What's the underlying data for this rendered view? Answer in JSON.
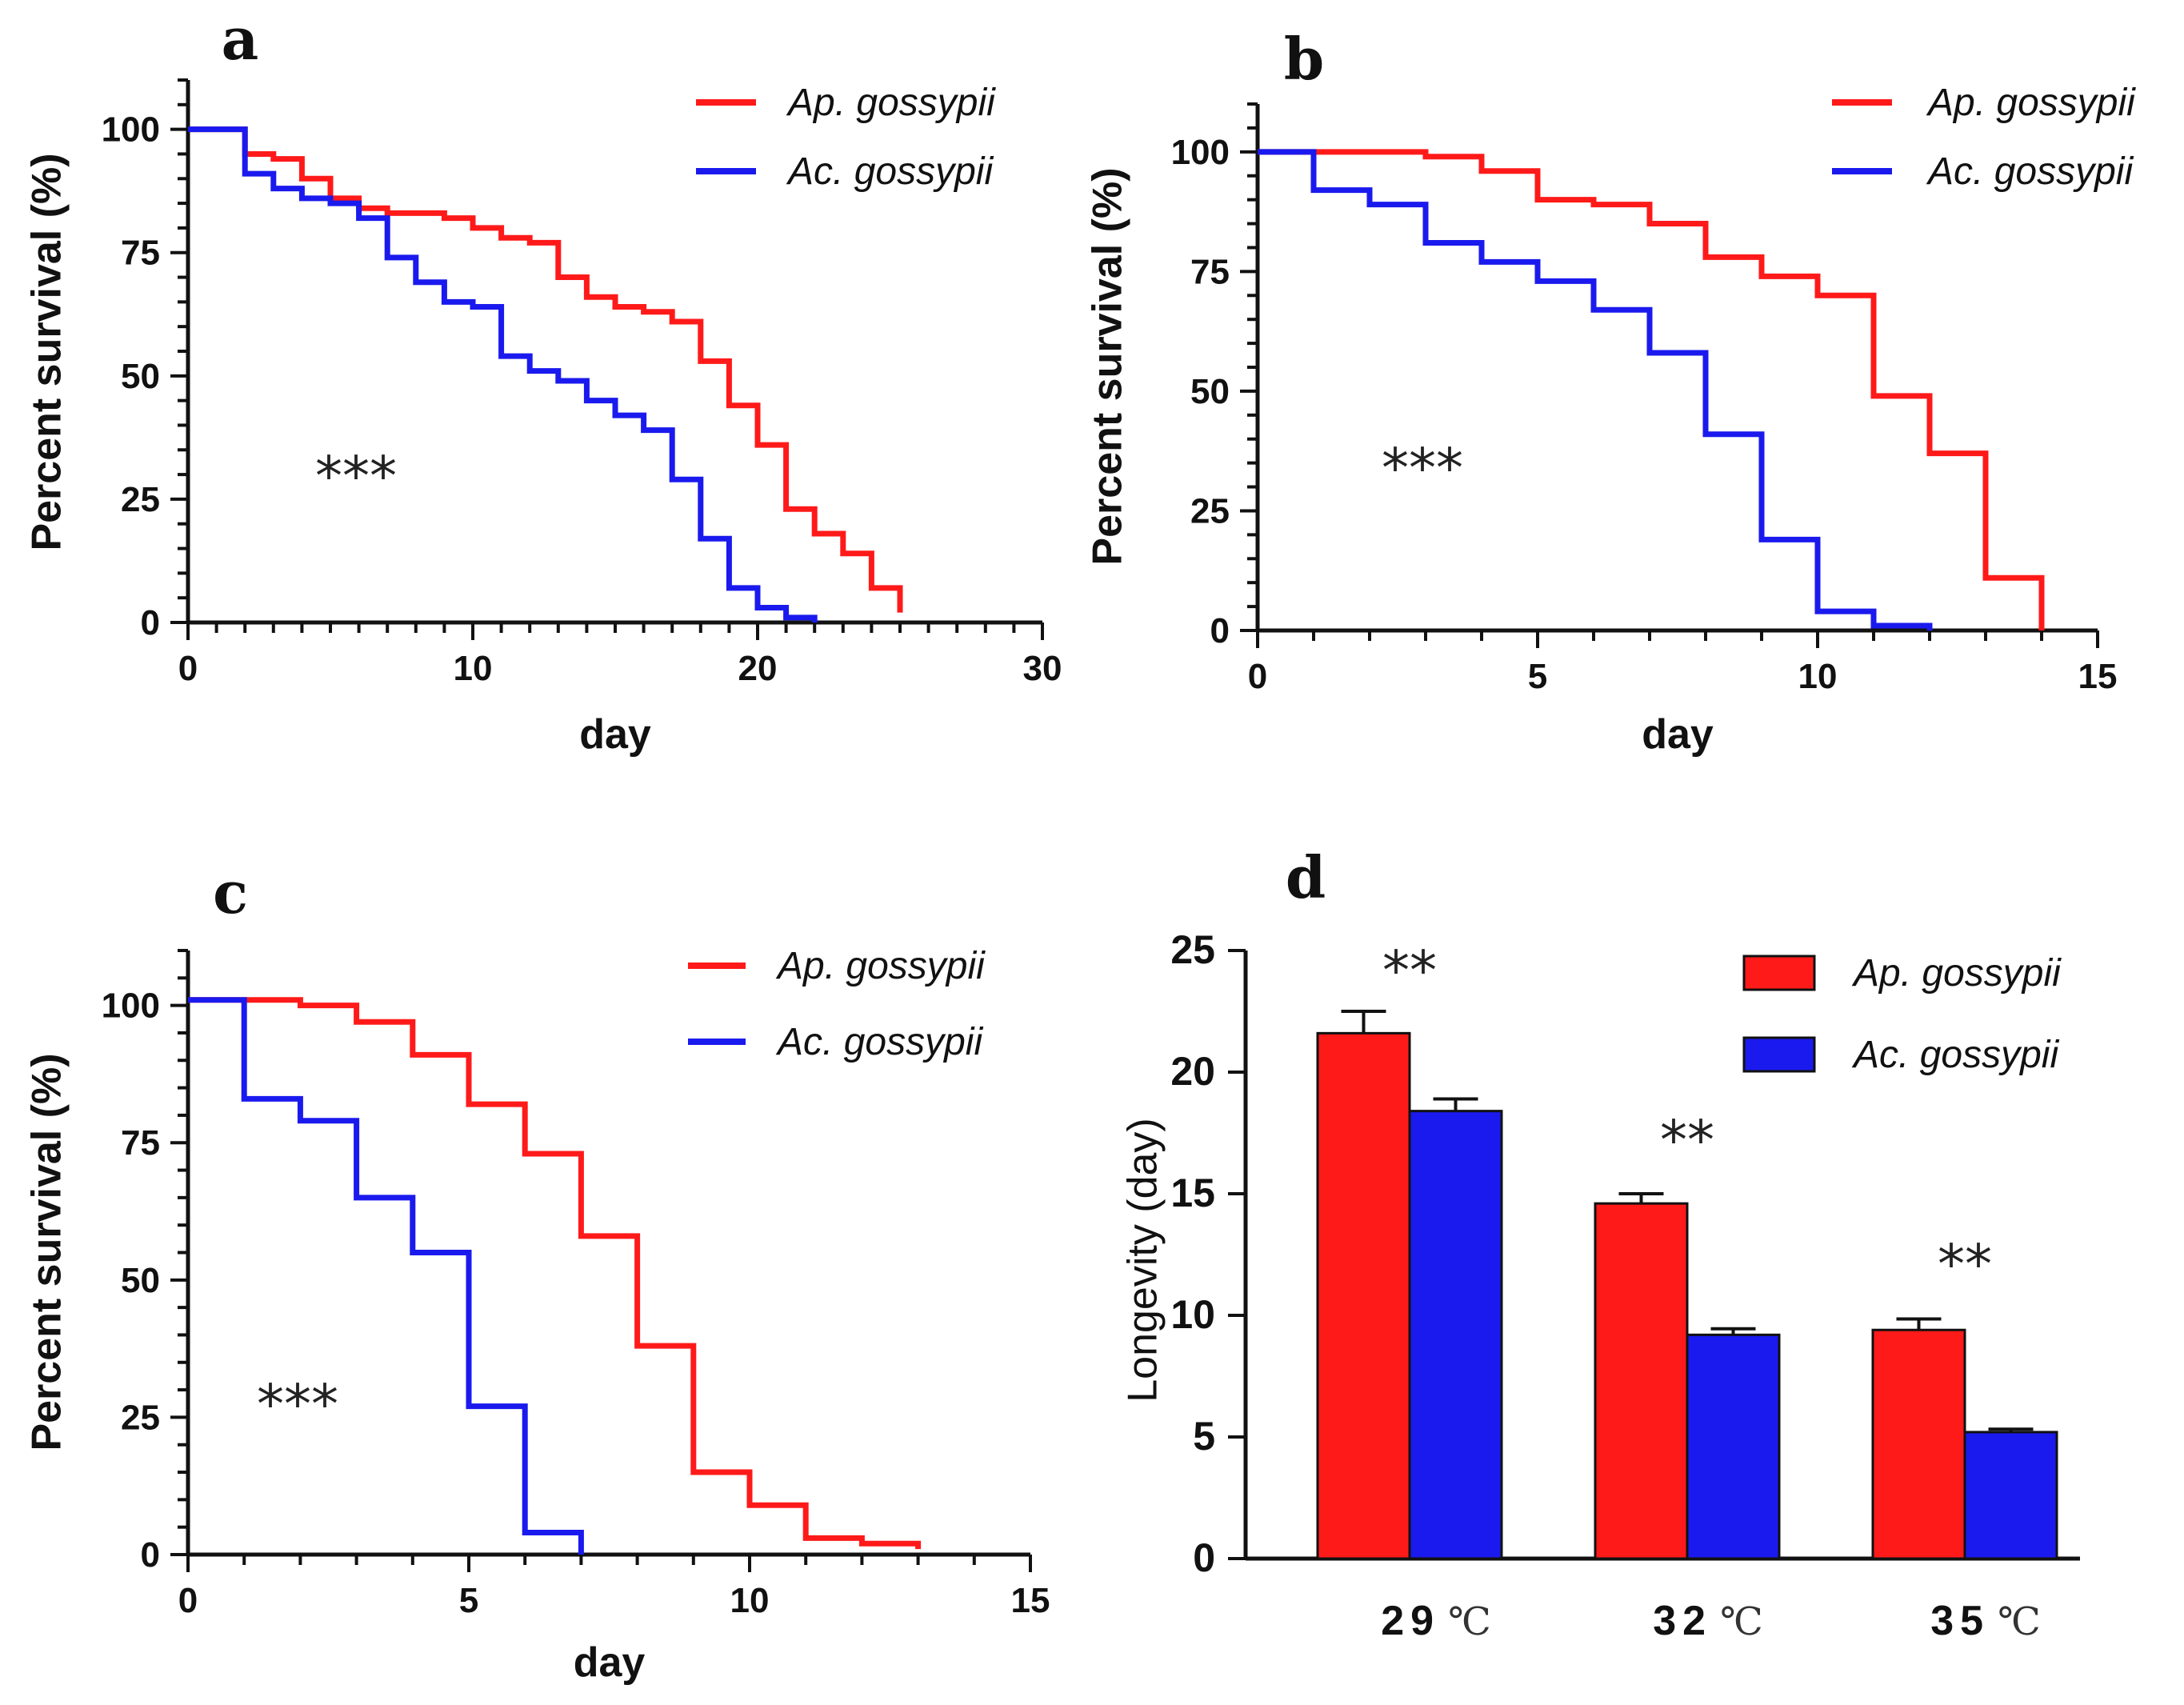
{
  "colors": {
    "red": "#ff1a1a",
    "blue": "#1a1aee",
    "axis": "#111111"
  },
  "chart_data": [
    {
      "panel": "a",
      "type": "line",
      "step": true,
      "xlabel": "day",
      "ylabel": "Percent survival (%)",
      "xlim": [
        0,
        30
      ],
      "ylim": [
        0,
        110
      ],
      "xticks": [
        0,
        10,
        20,
        30
      ],
      "yticks": [
        0,
        25,
        50,
        75,
        100
      ],
      "xminor": 1,
      "yminor": 5,
      "annotation": "***",
      "legend": [
        "Ap. gossypii",
        "Ac. gossypii"
      ],
      "series": [
        {
          "name": "Ap. gossypii",
          "color": "#ff1a1a",
          "x": [
            0,
            2,
            3,
            4,
            5,
            6,
            7,
            8,
            9,
            10,
            11,
            12,
            13,
            14,
            15,
            16,
            17,
            18,
            19,
            20,
            21,
            22,
            23,
            24,
            25
          ],
          "y": [
            100,
            95,
            94,
            90,
            86,
            84,
            83,
            83,
            82,
            80,
            78,
            77,
            70,
            66,
            64,
            63,
            61,
            53,
            44,
            36,
            23,
            18,
            14,
            7,
            2
          ]
        },
        {
          "name": "Ac. gossypii",
          "color": "#1a1aee",
          "x": [
            0,
            2,
            3,
            4,
            5,
            6,
            7,
            8,
            9,
            10,
            11,
            12,
            13,
            14,
            15,
            16,
            17,
            18,
            19,
            20,
            21,
            22
          ],
          "y": [
            100,
            91,
            88,
            86,
            85,
            82,
            74,
            69,
            65,
            64,
            54,
            51,
            49,
            45,
            42,
            39,
            29,
            17,
            7,
            3,
            1,
            0
          ]
        }
      ]
    },
    {
      "panel": "b",
      "type": "line",
      "step": true,
      "xlabel": "day",
      "ylabel": "Percent survival (%)",
      "xlim": [
        0,
        15
      ],
      "ylim": [
        0,
        110
      ],
      "xticks": [
        0,
        5,
        10,
        15
      ],
      "yticks": [
        0,
        25,
        50,
        75,
        100
      ],
      "xminor": 1,
      "yminor": 5,
      "annotation": "***",
      "legend": [
        "Ap. gossypii",
        "Ac. gossypii"
      ],
      "series": [
        {
          "name": "Ap. gossypii",
          "color": "#ff1a1a",
          "x": [
            0,
            3,
            4,
            5,
            6,
            7,
            8,
            9,
            10,
            11,
            12,
            13,
            14
          ],
          "y": [
            100,
            99,
            96,
            90,
            89,
            85,
            78,
            74,
            70,
            49,
            37,
            11,
            0
          ]
        },
        {
          "name": "Ac. gossypii",
          "color": "#1a1aee",
          "x": [
            0,
            1,
            2,
            3,
            4,
            5,
            6,
            7,
            8,
            9,
            10,
            11,
            12
          ],
          "y": [
            100,
            92,
            89,
            81,
            77,
            73,
            67,
            58,
            41,
            19,
            4,
            1,
            0
          ]
        }
      ]
    },
    {
      "panel": "c",
      "type": "line",
      "step": true,
      "xlabel": "day",
      "ylabel": "Percent survival (%)",
      "xlim": [
        0,
        15
      ],
      "ylim": [
        0,
        110
      ],
      "xticks": [
        0,
        5,
        10,
        15
      ],
      "yticks": [
        0,
        25,
        50,
        75,
        100
      ],
      "xminor": 1,
      "yminor": 5,
      "annotation": "***",
      "legend": [
        "Ap. gossypii",
        "Ac. gossypii"
      ],
      "series": [
        {
          "name": "Ap. gossypii",
          "color": "#ff1a1a",
          "x": [
            0,
            2,
            3,
            4,
            5,
            6,
            7,
            8,
            9,
            10,
            11,
            12,
            13
          ],
          "y": [
            101,
            100,
            97,
            91,
            82,
            73,
            58,
            38,
            15,
            9,
            3,
            2,
            1
          ]
        },
        {
          "name": "Ac. gossypii",
          "color": "#1a1aee",
          "x": [
            0,
            1,
            2,
            3,
            4,
            5,
            6,
            7
          ],
          "y": [
            101,
            83,
            79,
            65,
            55,
            27,
            4,
            0
          ]
        }
      ]
    },
    {
      "panel": "d",
      "type": "bar",
      "xlabel": "",
      "ylabel": "Longevity (day)",
      "ylim": [
        0,
        25
      ],
      "yticks": [
        0,
        5,
        10,
        15,
        20,
        25
      ],
      "categories": [
        {
          "num": "29",
          "unit": "℃"
        },
        {
          "num": "32",
          "unit": "℃"
        },
        {
          "num": "35",
          "unit": "℃"
        }
      ],
      "annotations": [
        "**",
        "**",
        "**"
      ],
      "legend": [
        "Ap. gossypii",
        "Ac. gossypii"
      ],
      "series": [
        {
          "name": "Ap. gossypii",
          "color": "#ff1a1a",
          "values": [
            21.6,
            14.6,
            9.4
          ],
          "errors": [
            0.9,
            0.4,
            0.45
          ]
        },
        {
          "name": "Ac. gossypii",
          "color": "#1a1aee",
          "values": [
            18.4,
            9.2,
            5.2
          ],
          "errors": [
            0.5,
            0.25,
            0.12
          ]
        }
      ]
    }
  ]
}
